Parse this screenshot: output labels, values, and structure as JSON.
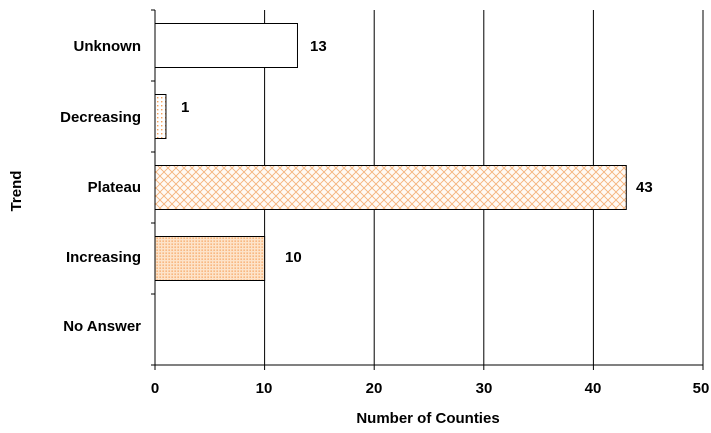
{
  "chart_data": {
    "type": "bar",
    "orientation": "horizontal",
    "title": "",
    "xlabel": "Number of Counties",
    "ylabel": "Trend",
    "categories": [
      "Unknown",
      "Decreasing",
      "Plateau",
      "Increasing",
      "No Answer"
    ],
    "values": [
      13,
      1,
      43,
      10,
      0
    ],
    "data_labels": [
      "13",
      "1",
      "43",
      "10",
      ""
    ],
    "xlim": [
      0,
      50
    ],
    "x_ticks": [
      0,
      10,
      20,
      30,
      40,
      50
    ],
    "grid": "vertical gridlines",
    "legend": "none",
    "bar_styles": [
      "plain white",
      "dotted light orange",
      "crosshatch light orange",
      "dense dotted orange",
      "none"
    ],
    "colors": {
      "accent": "#f5a05a",
      "bar_outline": "#000000",
      "grid": "#000000"
    }
  }
}
